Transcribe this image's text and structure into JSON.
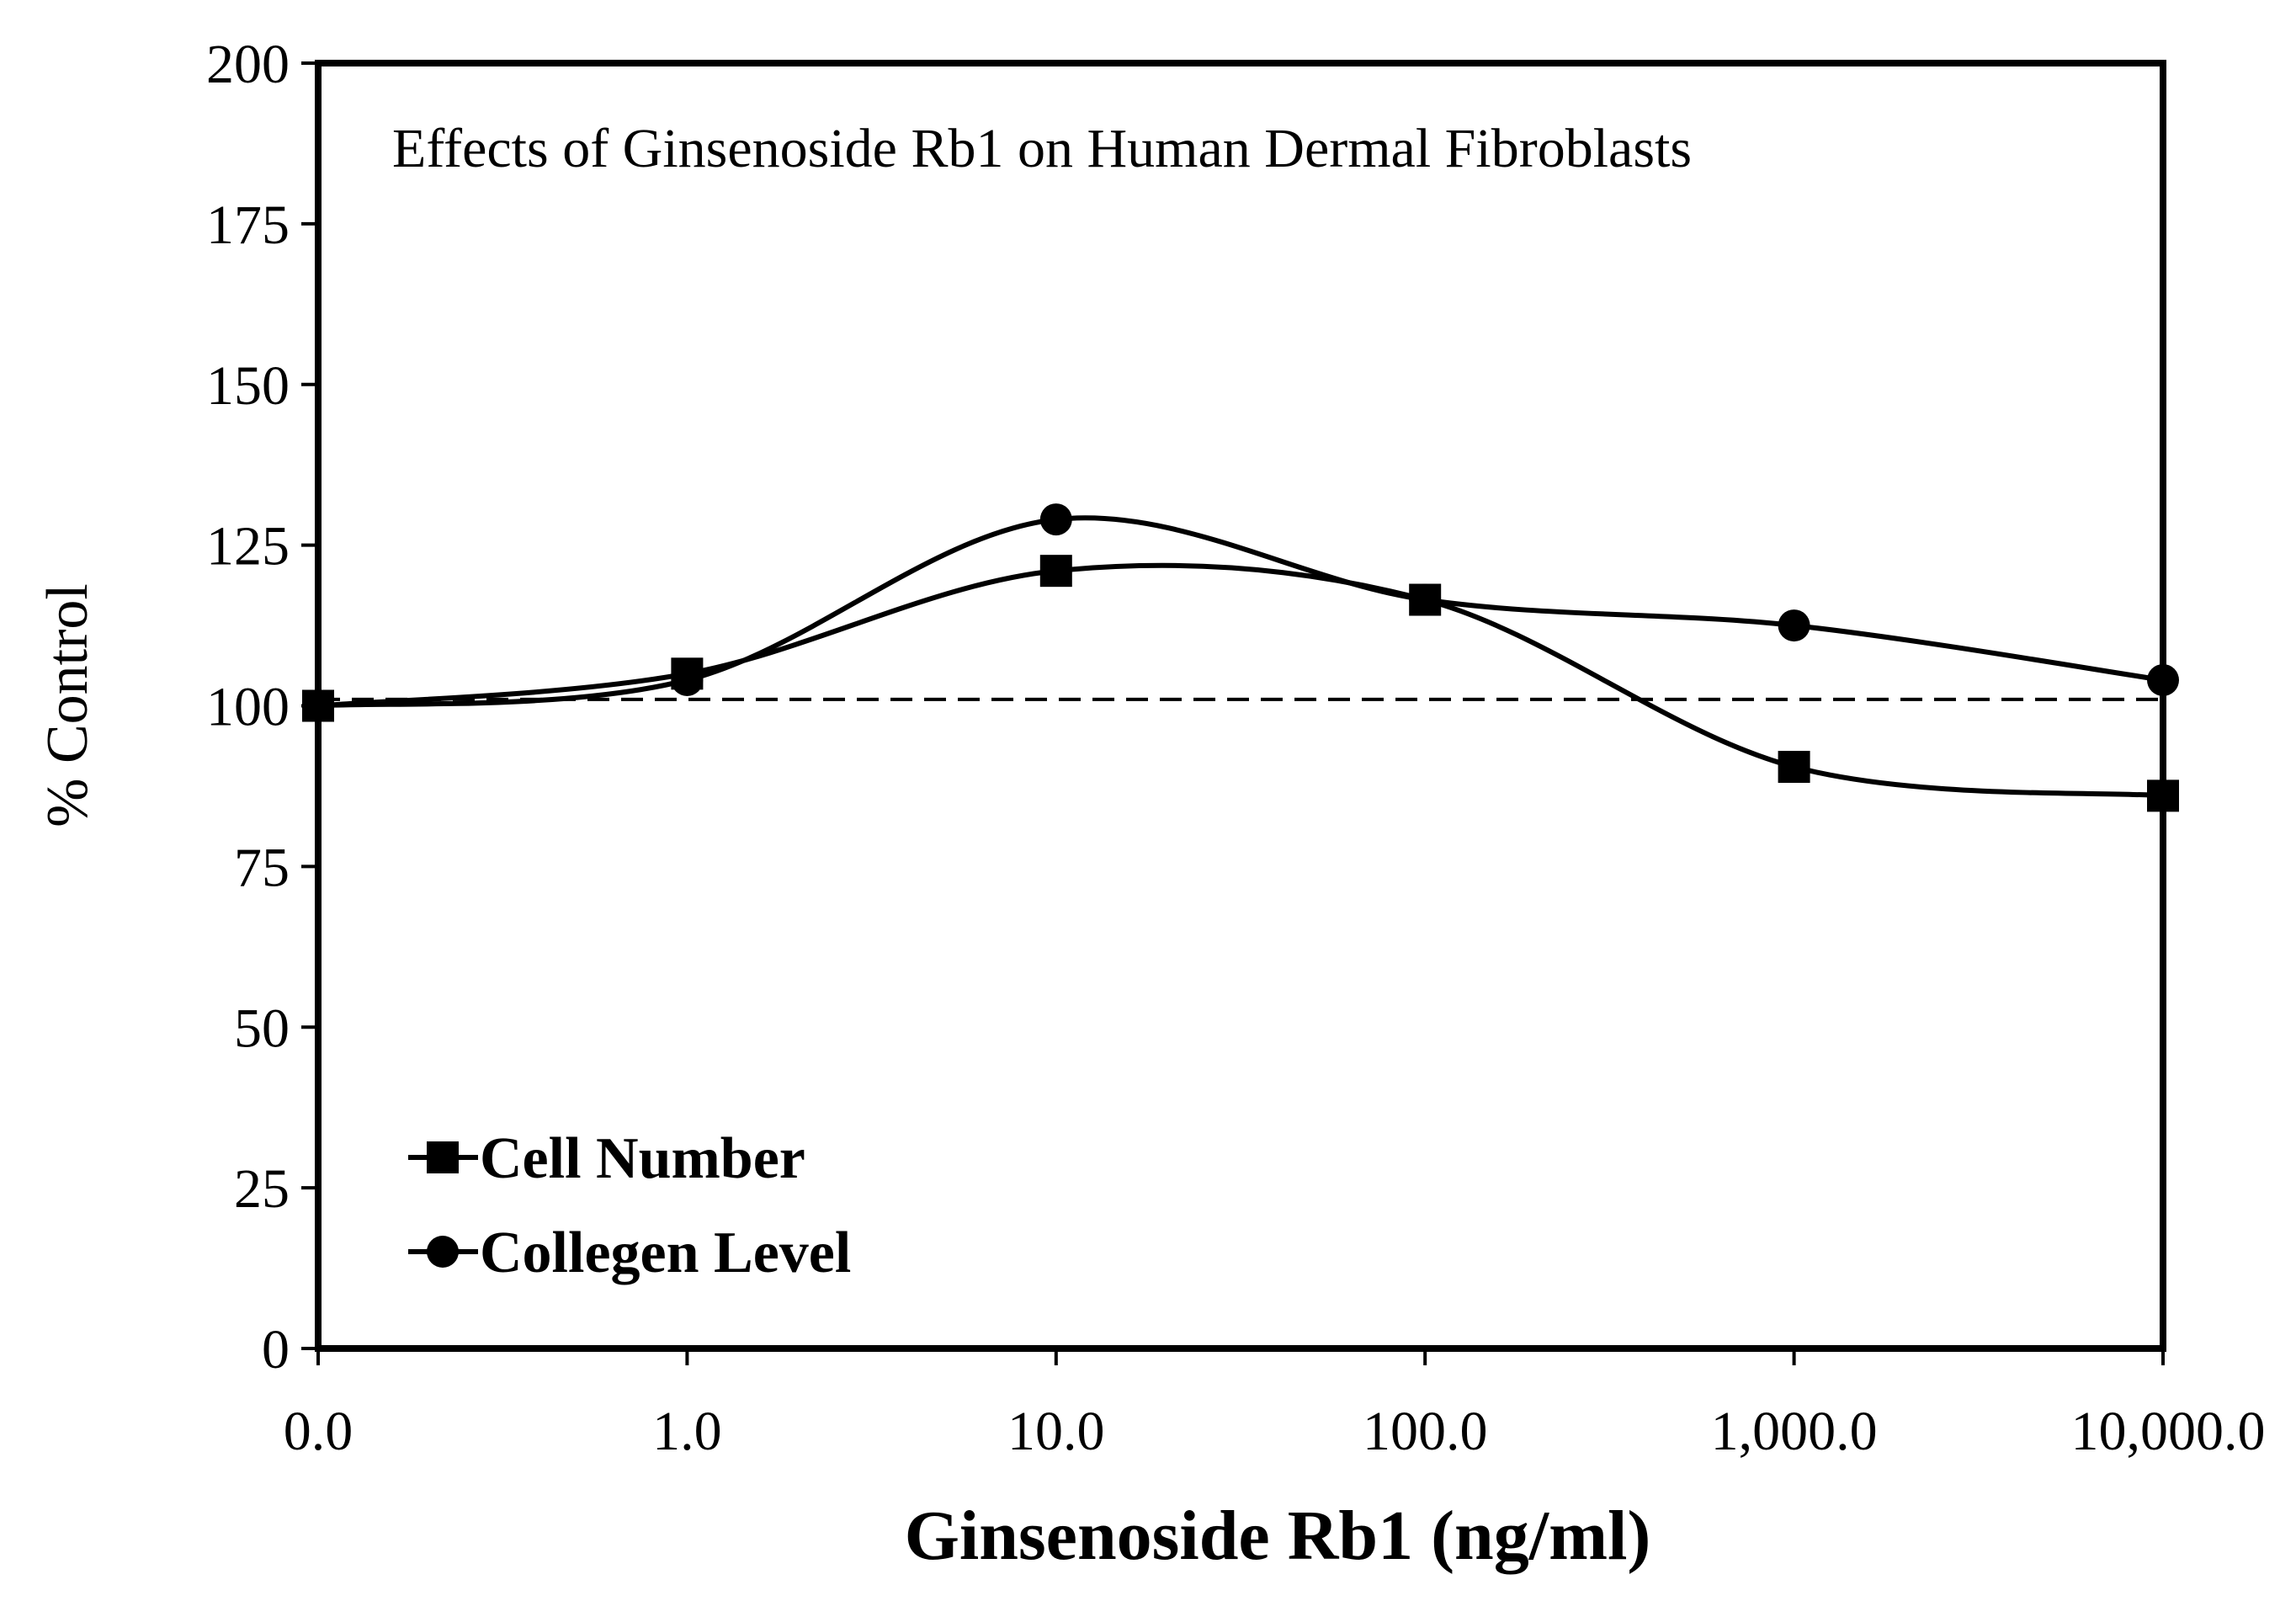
{
  "chart_data": {
    "type": "line",
    "title": "Effects of Ginsenoside Rb1 on Human  Dermal Fibroblasts",
    "xlabel": "Ginsenoside Rb1 (ng/ml)",
    "ylabel": "% Control",
    "categories": [
      "0.0",
      "1.0",
      "10.0",
      "100.0",
      "1,000.0",
      "10,000.0"
    ],
    "y_ticks": [
      "0",
      "25",
      "50",
      "75",
      "100",
      "125",
      "150",
      "175",
      "200"
    ],
    "ylim": [
      0,
      200
    ],
    "grid": false,
    "baseline": {
      "value": 101,
      "style": "dashed"
    },
    "series": [
      {
        "name": "Cell Number",
        "marker": "square",
        "values": [
          100,
          105,
          121,
          116.5,
          90.5,
          86
        ]
      },
      {
        "name": "Collegen Level",
        "marker": "circle",
        "values": [
          100,
          104,
          129,
          116.5,
          112.5,
          104
        ]
      }
    ],
    "legend_position": "bottom-left"
  }
}
